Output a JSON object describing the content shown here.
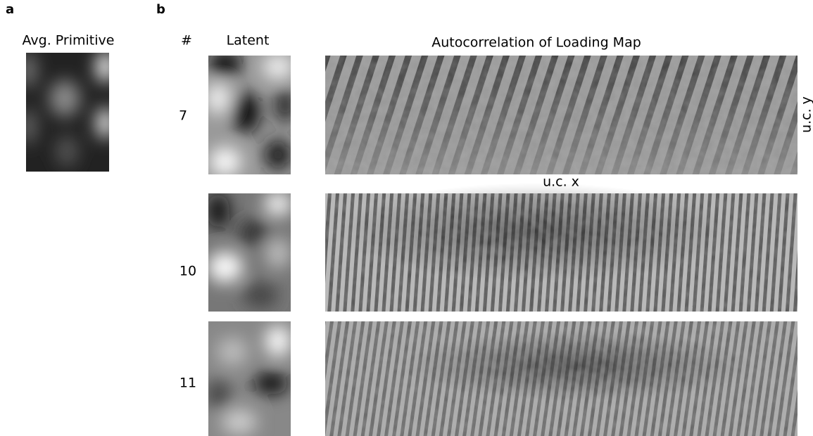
{
  "panel_a": {
    "label": "a",
    "title": "Avg. Primitive"
  },
  "panel_b": {
    "label": "b",
    "index_header": "#",
    "latent_header": "Latent",
    "autocorrelation_header": "Autocorrelation of Loading Map",
    "rows": [
      {
        "index": "7"
      },
      {
        "index": "10"
      },
      {
        "index": "11"
      }
    ],
    "x_axis_label": "u.c. x",
    "y_axis_label": "u.c. y"
  }
}
